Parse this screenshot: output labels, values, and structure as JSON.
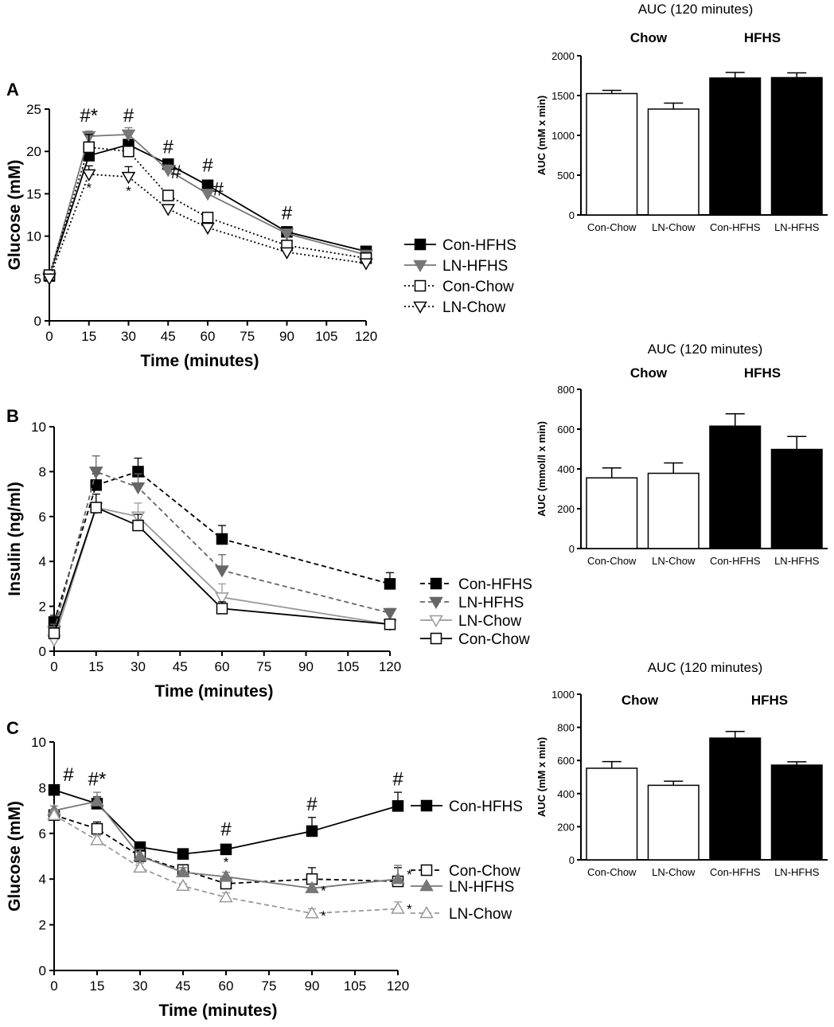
{
  "chart_data": [
    {
      "type": "line",
      "panel_label": "A",
      "xlabel": "Time  (minutes)",
      "ylabel": "Glucose (mM)",
      "xlim": [
        0,
        120
      ],
      "ylim": [
        0,
        25
      ],
      "x_ticks": [
        "0",
        "15",
        "30",
        "45",
        "60",
        "75",
        "90",
        "105",
        "120"
      ],
      "y_ticks": [
        "0",
        "5",
        "10",
        "15",
        "20",
        "25"
      ],
      "x": [
        0,
        15,
        30,
        45,
        60,
        90,
        120
      ],
      "series": [
        {
          "name": "Con-HFHS",
          "color": "#000000",
          "marker": "square-filled",
          "line": "solid",
          "values": [
            5.3,
            19.5,
            20.8,
            18.5,
            16.0,
            10.5,
            8.2
          ],
          "errors": [
            0.4,
            0.8,
            0.6,
            0.5,
            0.5,
            0.4,
            0.3
          ]
        },
        {
          "name": "LN-HFHS",
          "color": "#777777",
          "marker": "triangle-down-filled",
          "line": "solid",
          "values": [
            5.2,
            21.8,
            22.0,
            17.8,
            15.0,
            10.3,
            7.8
          ],
          "errors": [
            0.4,
            0.6,
            0.8,
            0.6,
            0.5,
            0.4,
            0.3
          ]
        },
        {
          "name": "Con-Chow",
          "color": "#000000",
          "marker": "square-open",
          "line": "dotted",
          "values": [
            5.4,
            20.5,
            20.0,
            14.8,
            12.2,
            8.9,
            7.4
          ],
          "errors": [
            0.4,
            1.5,
            0.8,
            0.5,
            0.5,
            0.4,
            0.3
          ]
        },
        {
          "name": "LN-Chow",
          "color": "#000000",
          "marker": "triangle-down-open",
          "line": "dotted",
          "values": [
            5.0,
            17.3,
            17.0,
            13.2,
            11.0,
            8.1,
            6.8
          ],
          "errors": [
            0.3,
            1.0,
            1.2,
            0.5,
            0.5,
            0.4,
            0.3
          ]
        }
      ],
      "annotations": [
        {
          "text": "#*",
          "x": 15,
          "y": 23.5
        },
        {
          "text": "*",
          "x": 15,
          "y": 15.2
        },
        {
          "text": "#",
          "x": 30,
          "y": 23.5
        },
        {
          "text": "*",
          "x": 30,
          "y": 14.8
        },
        {
          "text": "#",
          "x": 45,
          "y": 19.8
        },
        {
          "text": "#",
          "x": 48,
          "y": 16.8
        },
        {
          "text": "#",
          "x": 60,
          "y": 17.6
        },
        {
          "text": "#",
          "x": 64,
          "y": 14.8
        },
        {
          "text": "#",
          "x": 90,
          "y": 12.0
        }
      ]
    },
    {
      "type": "bar",
      "title": "AUC (120 minutes)",
      "group_labels": [
        "Chow",
        "HFHS"
      ],
      "ylabel": "AUC (mM x min)",
      "ylim": [
        0,
        2000
      ],
      "y_ticks": [
        "0",
        "500",
        "1000",
        "1500",
        "2000"
      ],
      "categories": [
        "Con-Chow",
        "LN-Chow",
        "Con-HFHS",
        "LN-HFHS"
      ],
      "values": [
        1525,
        1330,
        1720,
        1725
      ],
      "errors": [
        40,
        75,
        70,
        60
      ],
      "fills": [
        "#ffffff",
        "#ffffff",
        "#000000",
        "#000000"
      ]
    },
    {
      "type": "line",
      "panel_label": "B",
      "xlabel": "Time (minutes)",
      "ylabel": "Insulin (ng/ml)",
      "xlim": [
        0,
        120
      ],
      "ylim": [
        0,
        10
      ],
      "x_ticks": [
        "0",
        "15",
        "30",
        "45",
        "60",
        "75",
        "90",
        "105",
        "120"
      ],
      "y_ticks": [
        "0",
        "2",
        "4",
        "6",
        "8",
        "10"
      ],
      "x": [
        0,
        15,
        30,
        60,
        120
      ],
      "series": [
        {
          "name": "Con-HFHS",
          "color": "#000000",
          "marker": "square-filled",
          "line": "dashed",
          "values": [
            1.3,
            7.4,
            8.0,
            5.0,
            3.0
          ],
          "errors": [
            0.3,
            0.5,
            0.6,
            0.6,
            0.5
          ]
        },
        {
          "name": "LN-HFHS",
          "color": "#666666",
          "marker": "triangle-down-filled",
          "line": "dashed",
          "values": [
            0.9,
            8.0,
            7.3,
            3.6,
            1.7
          ],
          "errors": [
            0.3,
            0.7,
            0.6,
            0.7,
            0.2
          ]
        },
        {
          "name": "LN-Chow",
          "color": "#999999",
          "marker": "triangle-down-open",
          "line": "solid",
          "values": [
            0.5,
            6.4,
            6.0,
            2.4,
            1.2
          ],
          "errors": [
            0.2,
            0.6,
            0.6,
            0.6,
            0.2
          ]
        },
        {
          "name": "Con-Chow",
          "color": "#000000",
          "marker": "square-open",
          "line": "solid",
          "values": [
            0.8,
            6.4,
            5.6,
            1.9,
            1.2
          ],
          "errors": [
            0.2,
            0.6,
            0.5,
            0.3,
            0.2
          ]
        }
      ],
      "annotations": []
    },
    {
      "type": "bar",
      "title": "AUC (120 minutes)",
      "group_labels": [
        "Chow",
        "HFHS"
      ],
      "ylabel": "AUC (mmol/l x min)",
      "ylim": [
        0,
        800
      ],
      "y_ticks": [
        "0",
        "200",
        "400",
        "600",
        "800"
      ],
      "categories": [
        "Con-Chow",
        "LN-Chow",
        "Con-HFHS",
        "LN-HFHS"
      ],
      "values": [
        355,
        378,
        615,
        498
      ],
      "errors": [
        50,
        52,
        62,
        65
      ],
      "fills": [
        "#ffffff",
        "#ffffff",
        "#000000",
        "#000000"
      ]
    },
    {
      "type": "line",
      "panel_label": "C",
      "xlabel": "Time  (minutes)",
      "ylabel": "Glucose (mM)",
      "xlim": [
        0,
        120
      ],
      "ylim": [
        0,
        10
      ],
      "x_ticks": [
        "0",
        "15",
        "30",
        "45",
        "60",
        "75",
        "90",
        "105",
        "120"
      ],
      "y_ticks": [
        "0",
        "2",
        "4",
        "6",
        "8",
        "10"
      ],
      "x": [
        0,
        15,
        30,
        45,
        60,
        90,
        120
      ],
      "series": [
        {
          "name": "Con-HFHS",
          "color": "#000000",
          "marker": "square-filled",
          "line": "solid",
          "values": [
            7.9,
            7.3,
            5.4,
            5.1,
            5.3,
            6.1,
            7.2
          ],
          "errors": [
            0.2,
            0.3,
            0.2,
            0.15,
            0.2,
            0.6,
            0.6
          ]
        },
        {
          "name": "Con-Chow",
          "color": "#000000",
          "marker": "square-open",
          "line": "dashed",
          "values": [
            6.8,
            6.2,
            5.0,
            4.4,
            3.8,
            4.0,
            3.9
          ],
          "errors": [
            0.2,
            0.3,
            0.2,
            0.2,
            0.3,
            0.5,
            0.6
          ]
        },
        {
          "name": "LN-HFHS",
          "color": "#777777",
          "marker": "triangle-up-filled",
          "line": "solid",
          "values": [
            7.0,
            7.4,
            5.0,
            4.3,
            4.1,
            3.6,
            4.0
          ],
          "errors": [
            0.2,
            0.4,
            0.3,
            0.2,
            0.2,
            0.2,
            0.6
          ]
        },
        {
          "name": "LN-Chow",
          "color": "#999999",
          "marker": "triangle-up-open",
          "line": "dashed",
          "values": [
            6.8,
            5.7,
            4.5,
            3.7,
            3.2,
            2.5,
            2.7
          ],
          "errors": [
            0.2,
            0.2,
            0.2,
            0.1,
            0.2,
            0.2,
            0.3
          ]
        }
      ],
      "annotations": [
        {
          "text": "#",
          "x": 5,
          "y": 8.3
        },
        {
          "text": "#*",
          "x": 15,
          "y": 8.1
        },
        {
          "text": "#",
          "x": 60,
          "y": 5.9
        },
        {
          "text": "*",
          "x": 60,
          "y": 4.55
        },
        {
          "text": "#",
          "x": 90,
          "y": 7.0
        },
        {
          "text": "*",
          "x": 94,
          "y": 3.3
        },
        {
          "text": "*",
          "x": 94,
          "y": 2.2
        },
        {
          "text": "#",
          "x": 120,
          "y": 8.1
        },
        {
          "text": "*",
          "x": 124,
          "y": 4.0
        },
        {
          "text": "*",
          "x": 124,
          "y": 2.5
        }
      ]
    },
    {
      "type": "bar",
      "title": "AUC (120 minutes)",
      "group_labels": [
        "Chow",
        "HFHS"
      ],
      "ylabel": "AUC  (mM x min)",
      "ylim": [
        0,
        1000
      ],
      "y_ticks": [
        "0",
        "200",
        "400",
        "600",
        "800",
        "1000"
      ],
      "categories": [
        "Con-Chow",
        "LN-Chow",
        "Con-HFHS",
        "LN-HFHS"
      ],
      "values": [
        553,
        450,
        735,
        572
      ],
      "errors": [
        40,
        25,
        40,
        20
      ],
      "fills": [
        "#ffffff",
        "#ffffff",
        "#000000",
        "#000000"
      ]
    }
  ]
}
